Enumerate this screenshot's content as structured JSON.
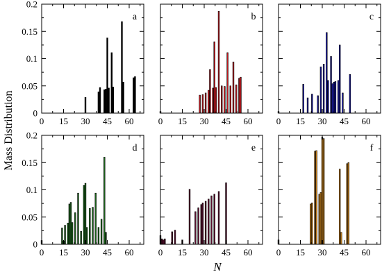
{
  "figure": {
    "ylabel": "Mass Distribution",
    "xlabel": "N"
  },
  "chart_data": [
    {
      "type": "bar",
      "panel": "a",
      "color": "#000000",
      "xlim": [
        0,
        70
      ],
      "ylim": [
        0,
        0.2
      ],
      "xticks": [
        0,
        15,
        30,
        45,
        60
      ],
      "yticks": [
        0,
        0.05,
        0.1,
        0.15,
        0.2
      ],
      "x": [
        30,
        39,
        40,
        43,
        44,
        45,
        46,
        48,
        49,
        55,
        56,
        63,
        64
      ],
      "values": [
        0.029,
        0.039,
        0.047,
        0.043,
        0.044,
        0.138,
        0.046,
        0.111,
        0.048,
        0.168,
        0.057,
        0.065,
        0.067
      ]
    },
    {
      "type": "bar",
      "panel": "b",
      "color": "#c0181e",
      "xlim": [
        0,
        70
      ],
      "ylim": [
        0,
        0.2
      ],
      "xticks": [
        0,
        15,
        30,
        45,
        60
      ],
      "yticks": [
        0,
        0.05,
        0.1,
        0.15,
        0.2
      ],
      "x": [
        0,
        27,
        29,
        31,
        33,
        34,
        36,
        37,
        38,
        40,
        42,
        44,
        46,
        48,
        50,
        52,
        54,
        55
      ],
      "values": [
        0.003,
        0.033,
        0.034,
        0.037,
        0.042,
        0.08,
        0.046,
        0.131,
        0.047,
        0.187,
        0.05,
        0.049,
        0.111,
        0.05,
        0.094,
        0.052,
        0.064,
        0.066
      ]
    },
    {
      "type": "bar",
      "panel": "c",
      "color": "#1a1aa0",
      "xlim": [
        0,
        70
      ],
      "ylim": [
        0,
        0.2
      ],
      "xticks": [
        0,
        15,
        30,
        45,
        60
      ],
      "yticks": [
        0,
        0.05,
        0.1,
        0.15,
        0.2
      ],
      "x": [
        0,
        17,
        20,
        23,
        27,
        29,
        31,
        33,
        34,
        36,
        37,
        38,
        39,
        41,
        42,
        44,
        49
      ],
      "values": [
        0.003,
        0.053,
        0.028,
        0.035,
        0.032,
        0.085,
        0.09,
        0.148,
        0.06,
        0.104,
        0.054,
        0.057,
        0.058,
        0.06,
        0.125,
        0.037,
        0.071
      ]
    },
    {
      "type": "bar",
      "panel": "d",
      "color": "#1e6b1e",
      "xlim": [
        0,
        70
      ],
      "ylim": [
        0,
        0.2
      ],
      "xticks": [
        0,
        15,
        30,
        45,
        60
      ],
      "yticks": [
        0,
        0.05,
        0.1,
        0.15,
        0.2
      ],
      "x": [
        0,
        14,
        15,
        16,
        18,
        19,
        20,
        21,
        23,
        25,
        27,
        29,
        30,
        31,
        33,
        35,
        37,
        39,
        41,
        43,
        44
      ],
      "values": [
        0.007,
        0.03,
        0.006,
        0.035,
        0.039,
        0.074,
        0.077,
        0.04,
        0.058,
        0.094,
        0.024,
        0.108,
        0.112,
        0.031,
        0.066,
        0.068,
        0.094,
        0.031,
        0.046,
        0.16,
        0.022
      ]
    },
    {
      "type": "bar",
      "panel": "e",
      "color": "#5a0e2e",
      "xlim": [
        0,
        70
      ],
      "ylim": [
        0,
        0.2
      ],
      "xticks": [
        0,
        15,
        30,
        45,
        60
      ],
      "yticks": [
        0,
        0.05,
        0.1,
        0.15,
        0.2
      ],
      "x": [
        0,
        1,
        2,
        3,
        8,
        10,
        15,
        20,
        24,
        26,
        28,
        29,
        31,
        33,
        35,
        37,
        40,
        45
      ],
      "values": [
        0.016,
        0.01,
        0.008,
        0.01,
        0.023,
        0.026,
        0.008,
        0.101,
        0.06,
        0.067,
        0.073,
        0.076,
        0.079,
        0.083,
        0.089,
        0.092,
        0.097,
        0.113
      ]
    },
    {
      "type": "bar",
      "panel": "f",
      "color": "#c9821c",
      "xlim": [
        0,
        70
      ],
      "ylim": [
        0,
        0.2
      ],
      "xticks": [
        0,
        15,
        30,
        45,
        60
      ],
      "yticks": [
        0,
        0.05,
        0.1,
        0.15,
        0.2
      ],
      "x": [
        0,
        22,
        23,
        25,
        26,
        28,
        29,
        30,
        31,
        42,
        43,
        47,
        48
      ],
      "values": [
        0.008,
        0.074,
        0.076,
        0.171,
        0.172,
        0.092,
        0.095,
        0.197,
        0.194,
        0.138,
        0.022,
        0.148,
        0.15
      ]
    }
  ]
}
